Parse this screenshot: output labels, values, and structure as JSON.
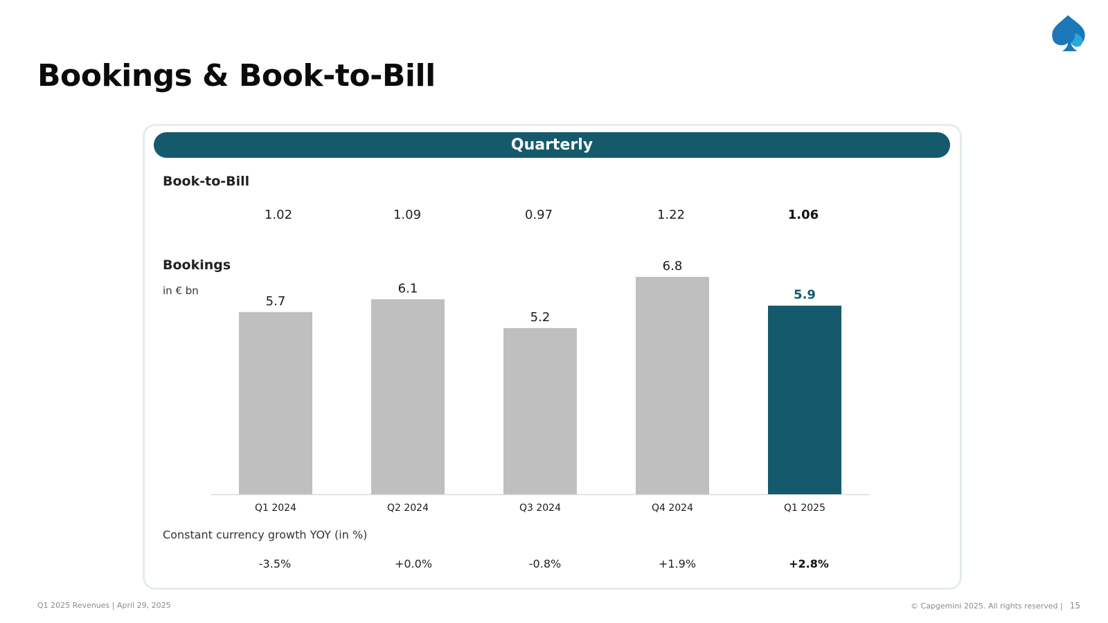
{
  "header": {
    "title": "Bookings & Book-to-Bill"
  },
  "panel": {
    "banner": "Quarterly",
    "btb_label": "Book-to-Bill",
    "bookings_label": "Bookings",
    "unit": "in € bn",
    "growth_label": "Constant currency growth YOY (in %)"
  },
  "footer": {
    "left": "Q1 2025 Revenues  |  April 29, 2025",
    "right": "© Capgemini 2025. All rights reserved  |",
    "page": "15"
  },
  "colors": {
    "accent": "#155a6c",
    "bar_gray": "#bfbfbf",
    "logo": "#1a78b8",
    "logo_light": "#2aa8dc"
  },
  "chart_data": {
    "type": "bar",
    "title": "Bookings",
    "ylabel": "in € bn",
    "categories": [
      "Q1 2024",
      "Q2 2024",
      "Q3 2024",
      "Q4 2024",
      "Q1 2025"
    ],
    "values": [
      5.7,
      6.1,
      5.2,
      6.8,
      5.9
    ],
    "value_labels": [
      "5.7",
      "6.1",
      "5.2",
      "6.8",
      "5.9"
    ],
    "highlight_index": 4,
    "ylim": [
      0,
      6.8
    ],
    "book_to_bill": [
      "1.02",
      "1.09",
      "0.97",
      "1.22",
      "1.06"
    ],
    "growth_yoy": [
      "-3.5%",
      "+0.0%",
      "-0.8%",
      "+1.9%",
      "+2.8%"
    ]
  }
}
